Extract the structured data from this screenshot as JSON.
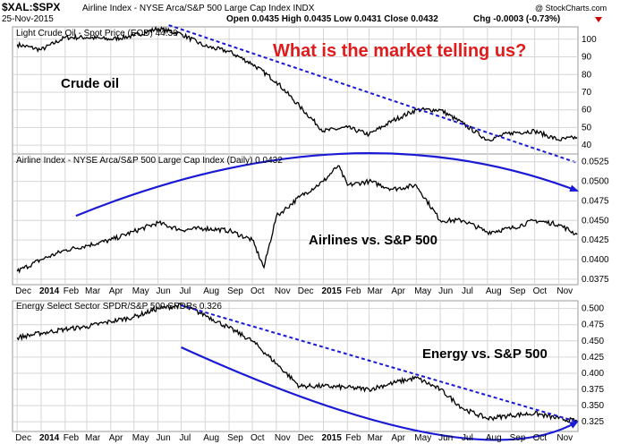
{
  "header": {
    "symbol": "$XAL:$SPX",
    "description": "Airline Index - NYSE Arca/S&P 500 Large Cap Index INDX",
    "date": "25-Nov-2015",
    "ohlc_text": "Open 0.0435 High 0.0435 Low 0.0431 Close 0.0432",
    "chg_text": "Chg -0.0003 (-0.73%)",
    "chg_color": "#cc0000",
    "watermark": "@ StockCharts.com"
  },
  "headline": {
    "text": "What is the market telling us?",
    "color": "#e01b1b"
  },
  "colors": {
    "line": "#000000",
    "trend": "#1a1ad6",
    "grid": "#d6d6d6"
  },
  "x_axis_labels": [
    {
      "text": "Dec",
      "bold": false
    },
    {
      "text": "2014",
      "bold": true
    },
    {
      "text": "Feb",
      "bold": false
    },
    {
      "text": "Mar",
      "bold": false
    },
    {
      "text": "Apr",
      "bold": false
    },
    {
      "text": "May",
      "bold": false
    },
    {
      "text": "Jun",
      "bold": false
    },
    {
      "text": "Jul",
      "bold": false
    },
    {
      "text": "Aug",
      "bold": false
    },
    {
      "text": "Sep",
      "bold": false
    },
    {
      "text": "Oct",
      "bold": false
    },
    {
      "text": "Nov",
      "bold": false
    },
    {
      "text": "Dec",
      "bold": false
    },
    {
      "text": "2015",
      "bold": true
    },
    {
      "text": "Feb",
      "bold": false
    },
    {
      "text": "Mar",
      "bold": false
    },
    {
      "text": "Apr",
      "bold": false
    },
    {
      "text": "May",
      "bold": false
    },
    {
      "text": "Jun",
      "bold": false
    },
    {
      "text": "Jul",
      "bold": false
    },
    {
      "text": "Aug",
      "bold": false
    },
    {
      "text": "Sep",
      "bold": false
    },
    {
      "text": "Oct",
      "bold": false
    },
    {
      "text": "Nov",
      "bold": false
    }
  ],
  "chart_data": [
    {
      "type": "line",
      "title": "Light Crude Oil - Spot Price (EOD) 44.39",
      "annotation": "Crude oil",
      "x": [
        "2013-12-01",
        "2014-01-01",
        "2014-02-01",
        "2014-03-01",
        "2014-04-01",
        "2014-05-01",
        "2014-06-01",
        "2014-07-01",
        "2014-08-01",
        "2014-09-01",
        "2014-10-01",
        "2014-11-01",
        "2014-12-01",
        "2015-01-01",
        "2015-02-01",
        "2015-03-01",
        "2015-04-01",
        "2015-05-01",
        "2015-06-01",
        "2015-07-01",
        "2015-08-01",
        "2015-09-01",
        "2015-10-01",
        "2015-11-01",
        "2015-11-25"
      ],
      "values": [
        97,
        94,
        101,
        101,
        100,
        102,
        106,
        103,
        96,
        93,
        86,
        76,
        62,
        48,
        50,
        46,
        54,
        60,
        60,
        52,
        43,
        47,
        48,
        43,
        44.39
      ],
      "y_ticks": [
        40,
        50,
        60,
        70,
        80,
        90,
        100
      ],
      "ylim": [
        35,
        107
      ],
      "trendline": {
        "style": "dashed",
        "from": {
          "x": "2014-06-15",
          "y": 108
        },
        "to": {
          "x": "2015-11-25",
          "y": 30
        }
      }
    },
    {
      "type": "line",
      "title": "Airline Index - NYSE Arca/S&P 500 Large Cap Index (Daily) 0.0432",
      "annotation": "Airlines vs. S&P 500",
      "x": [
        "2013-12-01",
        "2014-01-01",
        "2014-02-01",
        "2014-03-01",
        "2014-04-01",
        "2014-05-01",
        "2014-06-01",
        "2014-07-01",
        "2014-08-01",
        "2014-09-01",
        "2014-10-01",
        "2014-10-16",
        "2014-11-01",
        "2014-12-01",
        "2015-01-01",
        "2015-01-20",
        "2015-02-01",
        "2015-03-01",
        "2015-04-01",
        "2015-05-01",
        "2015-06-01",
        "2015-07-01",
        "2015-08-01",
        "2015-09-01",
        "2015-10-01",
        "2015-11-01",
        "2015-11-25"
      ],
      "values": [
        0.0385,
        0.04,
        0.0412,
        0.0418,
        0.0425,
        0.0436,
        0.0447,
        0.0438,
        0.044,
        0.0437,
        0.0425,
        0.039,
        0.0455,
        0.048,
        0.05,
        0.052,
        0.0495,
        0.05,
        0.049,
        0.0495,
        0.045,
        0.045,
        0.0435,
        0.044,
        0.045,
        0.0445,
        0.0432
      ],
      "y_ticks": [
        0.0375,
        0.04,
        0.0425,
        0.045,
        0.0475,
        0.05,
        0.0525
      ],
      "ylim": [
        0.0368,
        0.0535
      ],
      "arc": {
        "style": "solid-arrow",
        "from": {
          "x": "2014-02-15",
          "y": 0.0456
        },
        "peak": {
          "x": "2015-01-20",
          "y": 0.0535
        },
        "to": {
          "x": "2015-11-25",
          "y": 0.0488
        }
      }
    },
    {
      "type": "line",
      "title": "Energy Select Sector SPDR/S&P 500 SPDRs 0.326",
      "annotation": "Energy vs. S&P 500",
      "x": [
        "2013-12-01",
        "2014-01-01",
        "2014-02-01",
        "2014-03-01",
        "2014-04-01",
        "2014-05-01",
        "2014-06-01",
        "2014-07-01",
        "2014-08-01",
        "2014-09-01",
        "2014-10-01",
        "2014-11-01",
        "2014-12-01",
        "2015-01-01",
        "2015-02-01",
        "2015-03-01",
        "2015-04-01",
        "2015-05-01",
        "2015-06-01",
        "2015-07-01",
        "2015-08-01",
        "2015-09-01",
        "2015-10-01",
        "2015-11-01",
        "2015-11-25"
      ],
      "values": [
        0.455,
        0.462,
        0.468,
        0.472,
        0.48,
        0.487,
        0.5,
        0.505,
        0.49,
        0.47,
        0.45,
        0.415,
        0.38,
        0.38,
        0.378,
        0.375,
        0.385,
        0.393,
        0.375,
        0.345,
        0.33,
        0.335,
        0.338,
        0.33,
        0.326
      ],
      "y_ticks": [
        0.325,
        0.35,
        0.375,
        0.4,
        0.425,
        0.45,
        0.475,
        0.5
      ],
      "ylim": [
        0.31,
        0.512
      ],
      "trendline": {
        "style": "dashed",
        "from": {
          "x": "2014-07-01",
          "y": 0.505
        },
        "to": {
          "x": "2015-11-25",
          "y": 0.325
        }
      },
      "arc": {
        "style": "solid-arrow",
        "from": {
          "x": "2014-07-01",
          "y": 0.44
        },
        "low": {
          "x": "2015-05-15",
          "y": 0.308
        },
        "to": {
          "x": "2015-11-25",
          "y": 0.325
        }
      }
    }
  ]
}
